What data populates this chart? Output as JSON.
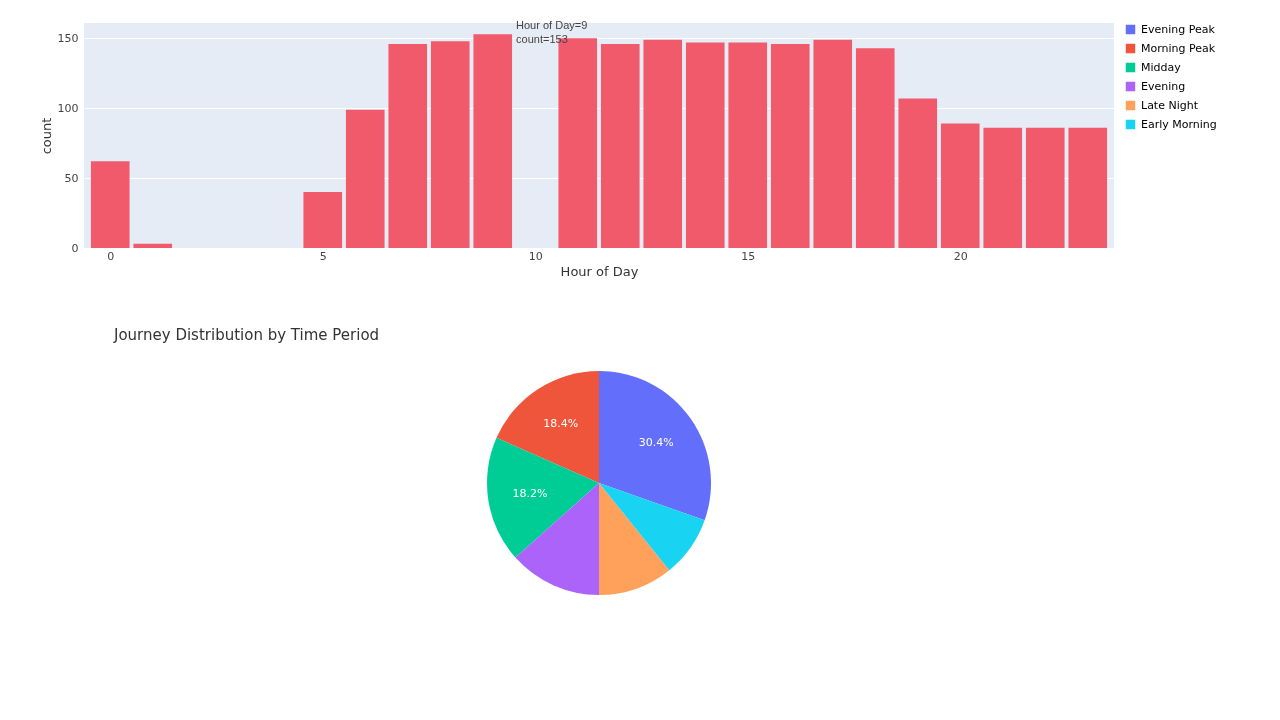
{
  "chart_data": [
    {
      "type": "bar",
      "xlabel": "Hour of Day",
      "ylabel": "count",
      "x": [
        0,
        1,
        2,
        3,
        4,
        5,
        6,
        7,
        8,
        9,
        10,
        11,
        12,
        13,
        14,
        15,
        16,
        17,
        18,
        19,
        20,
        21,
        22,
        23
      ],
      "values": [
        62,
        3,
        0,
        0,
        0,
        40,
        99,
        146,
        148,
        153,
        null,
        150,
        146,
        149,
        147,
        147,
        146,
        149,
        143,
        107,
        89,
        86,
        86,
        86
      ],
      "color": "#f05a6b",
      "xlim": [
        -0.5,
        23.5
      ],
      "xticks": [
        0,
        5,
        10,
        15,
        20
      ],
      "ylim": [
        0,
        161
      ],
      "yticks": [
        0,
        50,
        100,
        150
      ],
      "grid": "y",
      "annotations": [
        {
          "text": "Hour of Day=9\ncount=153",
          "x": 9,
          "y": 153
        }
      ]
    },
    {
      "type": "pie",
      "title": "Journey Distribution by Time Period",
      "categories": [
        "Evening Peak",
        "Morning Peak",
        "Midday",
        "Evening",
        "Late Night",
        "Early Morning"
      ],
      "values": [
        30.4,
        18.4,
        18.2,
        13.4,
        10.8,
        8.8
      ],
      "colors": [
        "#636efa",
        "#ef553b",
        "#00cc96",
        "#ab63fa",
        "#ffa15a",
        "#19d3f3"
      ],
      "value_labels": [
        "30.4%",
        "18.4%",
        "18.2%",
        null,
        null,
        null
      ],
      "legend": "right"
    }
  ]
}
